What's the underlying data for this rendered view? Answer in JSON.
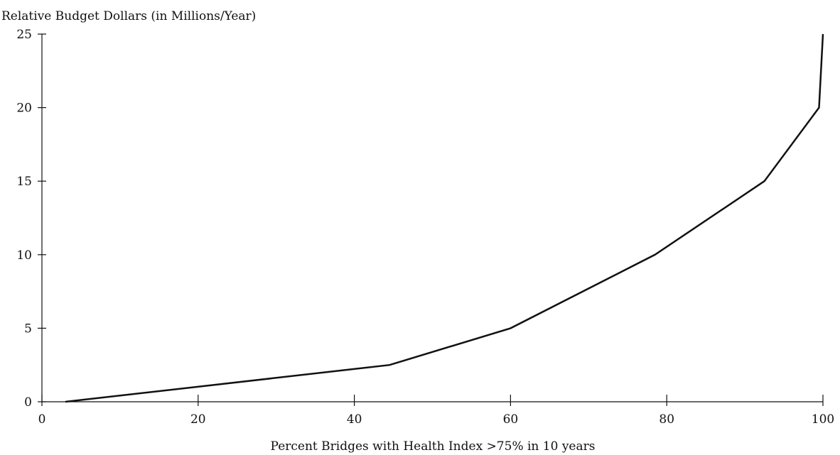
{
  "chart_data": {
    "type": "line",
    "title": "",
    "ylabel": "Relative Budget Dollars (in Millions/Year)",
    "xlabel": "Percent  Bridges with Health Index >75% in 10 years",
    "xlim": [
      0,
      100
    ],
    "ylim": [
      0,
      25
    ],
    "x_ticks": [
      0,
      20,
      40,
      60,
      80,
      100
    ],
    "y_ticks": [
      0,
      5,
      10,
      15,
      20,
      25
    ],
    "grid": false,
    "series": [
      {
        "x": [
          3,
          44.5,
          60,
          78.5,
          92.5,
          99.5,
          100
        ],
        "y": [
          0,
          2.5,
          5,
          10,
          15,
          20,
          25
        ]
      }
    ],
    "line_color": "#111111"
  }
}
